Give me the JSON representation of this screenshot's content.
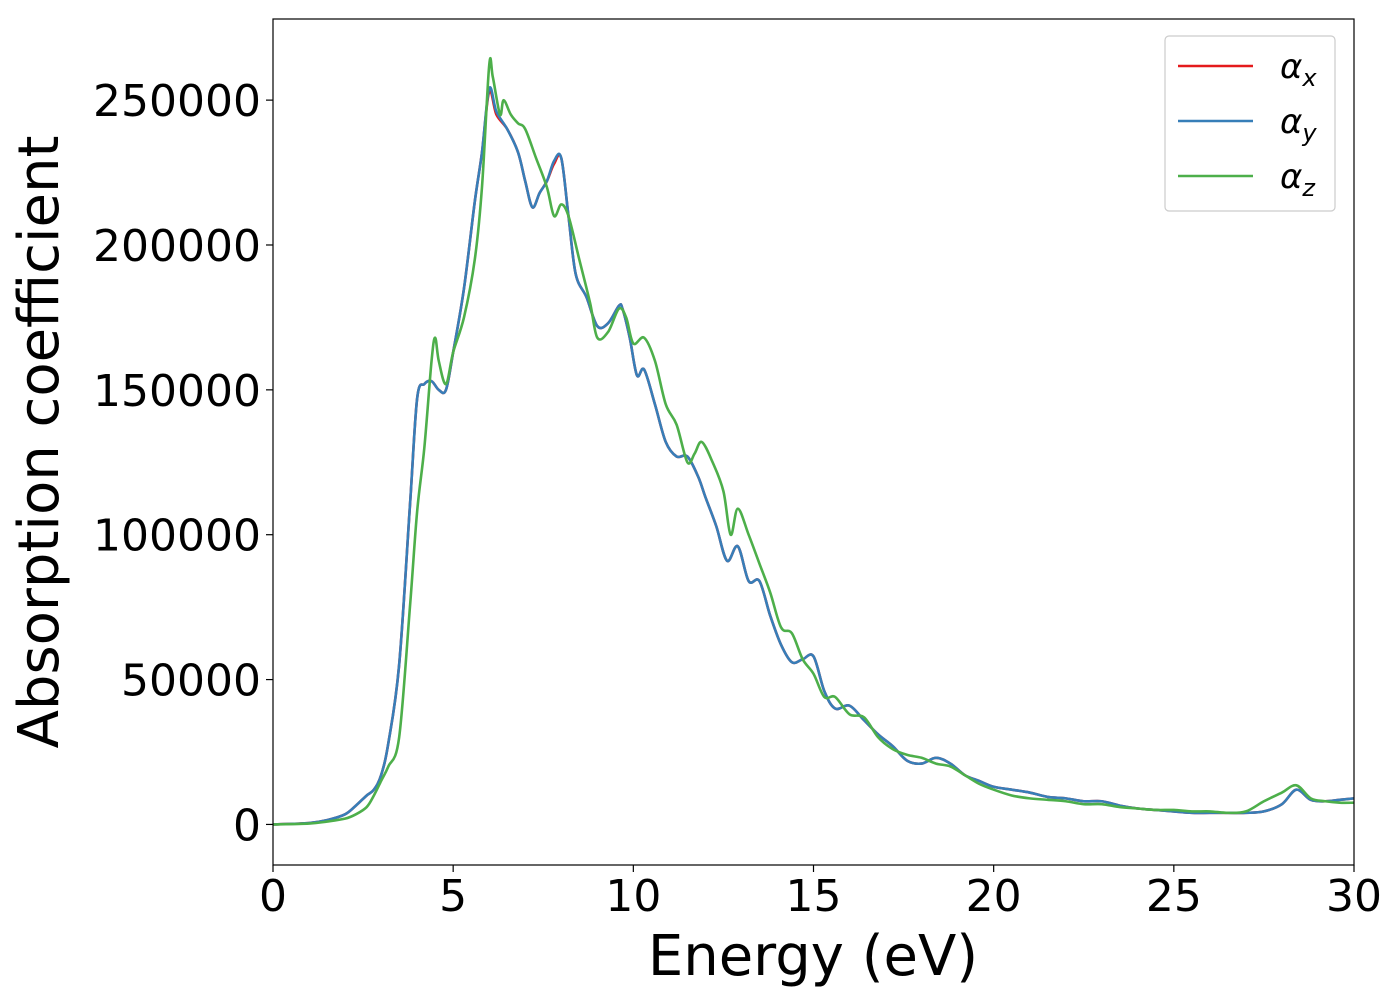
{
  "chart_data": {
    "type": "line",
    "xlabel": "Energy (eV)",
    "ylabel": "Absorption coefficient",
    "xlim": [
      0,
      30
    ],
    "ylim": [
      -14000,
      278000
    ],
    "xticks": [
      0,
      5,
      10,
      15,
      20,
      25,
      30
    ],
    "yticks": [
      0,
      50000,
      100000,
      150000,
      200000,
      250000
    ],
    "grid": false,
    "legend_position": "top-right",
    "series": [
      {
        "name": "α_x",
        "legend_main": "α",
        "legend_sub": "x",
        "color": "#e41a1c",
        "x": [
          0,
          1,
          1.5,
          2,
          2.3,
          2.6,
          2.8,
          3.0,
          3.2,
          3.5,
          3.8,
          4.0,
          4.2,
          4.4,
          4.6,
          4.8,
          5.0,
          5.3,
          5.6,
          5.8,
          6.0,
          6.2,
          6.5,
          6.8,
          7.0,
          7.2,
          7.4,
          7.6,
          7.8,
          8.0,
          8.2,
          8.4,
          8.7,
          9.0,
          9.3,
          9.6,
          9.7,
          9.9,
          10.1,
          10.3,
          10.6,
          10.9,
          11.2,
          11.5,
          11.8,
          12.0,
          12.3,
          12.6,
          12.9,
          13.2,
          13.5,
          13.8,
          14.1,
          14.4,
          14.7,
          15.0,
          15.3,
          15.6,
          16.0,
          16.4,
          16.8,
          17.2,
          17.6,
          18.0,
          18.4,
          18.8,
          19.2,
          19.6,
          20.0,
          20.5,
          21.0,
          21.5,
          22.0,
          22.5,
          23.0,
          23.5,
          24.0,
          24.5,
          25.0,
          25.5,
          26.0,
          26.5,
          27.0,
          27.5,
          28.0,
          28.4,
          28.8,
          29.2,
          29.6,
          30.0
        ],
        "values": [
          0,
          500,
          1500,
          3500,
          6500,
          10000,
          12000,
          17000,
          28000,
          55000,
          110000,
          147000,
          152000,
          153000,
          150000,
          150000,
          163000,
          185000,
          215000,
          232000,
          253000,
          245000,
          240000,
          232000,
          222000,
          213000,
          218000,
          222000,
          228000,
          230000,
          210000,
          190000,
          182000,
          172000,
          173000,
          179000,
          178000,
          168000,
          155000,
          157000,
          145000,
          132000,
          127000,
          127000,
          120000,
          113000,
          103000,
          91000,
          96000,
          84000,
          84000,
          72000,
          62000,
          56000,
          57000,
          58000,
          46000,
          40000,
          41000,
          36000,
          31000,
          27000,
          22000,
          21000,
          23000,
          21000,
          17000,
          15000,
          13000,
          12000,
          11000,
          9500,
          9000,
          8000,
          8000,
          6500,
          5500,
          5000,
          4500,
          4000,
          4000,
          4000,
          4000,
          4500,
          7000,
          12000,
          8500,
          8000,
          8500,
          9000
        ]
      },
      {
        "name": "α_y",
        "legend_main": "α",
        "legend_sub": "y",
        "color": "#377eb8",
        "x": [
          0,
          1,
          1.5,
          2,
          2.3,
          2.6,
          2.8,
          3.0,
          3.2,
          3.5,
          3.8,
          4.0,
          4.2,
          4.4,
          4.6,
          4.8,
          5.0,
          5.3,
          5.6,
          5.8,
          6.0,
          6.2,
          6.5,
          6.8,
          7.0,
          7.2,
          7.4,
          7.6,
          7.8,
          8.0,
          8.2,
          8.4,
          8.7,
          9.0,
          9.3,
          9.6,
          9.7,
          9.9,
          10.1,
          10.3,
          10.6,
          10.9,
          11.2,
          11.5,
          11.8,
          12.0,
          12.3,
          12.6,
          12.9,
          13.2,
          13.5,
          13.8,
          14.1,
          14.4,
          14.7,
          15.0,
          15.3,
          15.6,
          16.0,
          16.4,
          16.8,
          17.2,
          17.6,
          18.0,
          18.4,
          18.8,
          19.2,
          19.6,
          20.0,
          20.5,
          21.0,
          21.5,
          22.0,
          22.5,
          23.0,
          23.5,
          24.0,
          24.5,
          25.0,
          25.5,
          26.0,
          26.5,
          27.0,
          27.5,
          28.0,
          28.4,
          28.8,
          29.2,
          29.6,
          30.0
        ],
        "values": [
          0,
          500,
          1500,
          3500,
          6500,
          10000,
          12000,
          17000,
          28000,
          55000,
          110000,
          147000,
          152000,
          153000,
          150000,
          150000,
          163000,
          185000,
          215000,
          232000,
          254000,
          246000,
          240000,
          232000,
          222000,
          213000,
          218000,
          222000,
          229000,
          230000,
          210000,
          190000,
          182000,
          172000,
          173000,
          179000,
          178000,
          168000,
          155000,
          157000,
          145000,
          132000,
          127000,
          127000,
          120000,
          113000,
          103000,
          91000,
          96000,
          84000,
          84000,
          72000,
          62000,
          56000,
          57000,
          58000,
          46000,
          40000,
          41000,
          36000,
          31000,
          27000,
          22000,
          21000,
          23000,
          21000,
          17000,
          15000,
          13000,
          12000,
          11000,
          9500,
          9000,
          8000,
          8000,
          6500,
          5500,
          5000,
          4500,
          4000,
          4000,
          4000,
          4000,
          4500,
          7000,
          12000,
          8500,
          8000,
          8500,
          9000
        ]
      },
      {
        "name": "α_z",
        "legend_main": "α",
        "legend_sub": "z",
        "color": "#4daf4a",
        "x": [
          0,
          1,
          1.5,
          2,
          2.3,
          2.6,
          2.8,
          3.0,
          3.2,
          3.5,
          3.8,
          4.0,
          4.2,
          4.4,
          4.5,
          4.6,
          4.8,
          5.0,
          5.3,
          5.6,
          5.8,
          6.0,
          6.1,
          6.3,
          6.4,
          6.6,
          6.8,
          7.0,
          7.3,
          7.6,
          7.8,
          8.0,
          8.2,
          8.5,
          8.8,
          9.0,
          9.3,
          9.6,
          9.8,
          10.0,
          10.3,
          10.6,
          10.9,
          11.2,
          11.5,
          11.7,
          11.9,
          12.2,
          12.5,
          12.7,
          12.9,
          13.2,
          13.5,
          13.8,
          14.1,
          14.4,
          14.7,
          15.0,
          15.3,
          15.6,
          16.0,
          16.4,
          16.8,
          17.2,
          17.6,
          18.0,
          18.4,
          18.8,
          19.2,
          19.6,
          20.0,
          20.5,
          21.0,
          21.5,
          22.0,
          22.5,
          23.0,
          23.5,
          24.0,
          24.5,
          25.0,
          25.5,
          26.0,
          26.5,
          27.0,
          27.5,
          28.0,
          28.4,
          28.8,
          29.2,
          29.6,
          30.0
        ],
        "values": [
          0,
          300,
          1000,
          2000,
          3500,
          6000,
          10000,
          15000,
          20000,
          30000,
          75000,
          108000,
          130000,
          160000,
          168000,
          160000,
          152000,
          163000,
          175000,
          195000,
          220000,
          262000,
          258000,
          245000,
          250000,
          245000,
          242000,
          240000,
          230000,
          220000,
          210000,
          214000,
          210000,
          195000,
          180000,
          168000,
          170000,
          178000,
          175000,
          166000,
          168000,
          160000,
          145000,
          138000,
          125000,
          128000,
          132000,
          125000,
          115000,
          100000,
          109000,
          100000,
          90000,
          80000,
          68000,
          66000,
          57000,
          52000,
          44000,
          44000,
          38000,
          37000,
          30000,
          26000,
          24000,
          23000,
          21000,
          20000,
          17000,
          14000,
          12000,
          10000,
          9000,
          8500,
          8000,
          7000,
          7000,
          6000,
          5500,
          5000,
          5000,
          4500,
          4500,
          4000,
          4500,
          8000,
          11000,
          13500,
          9000,
          8000,
          7500,
          7500
        ]
      }
    ]
  }
}
